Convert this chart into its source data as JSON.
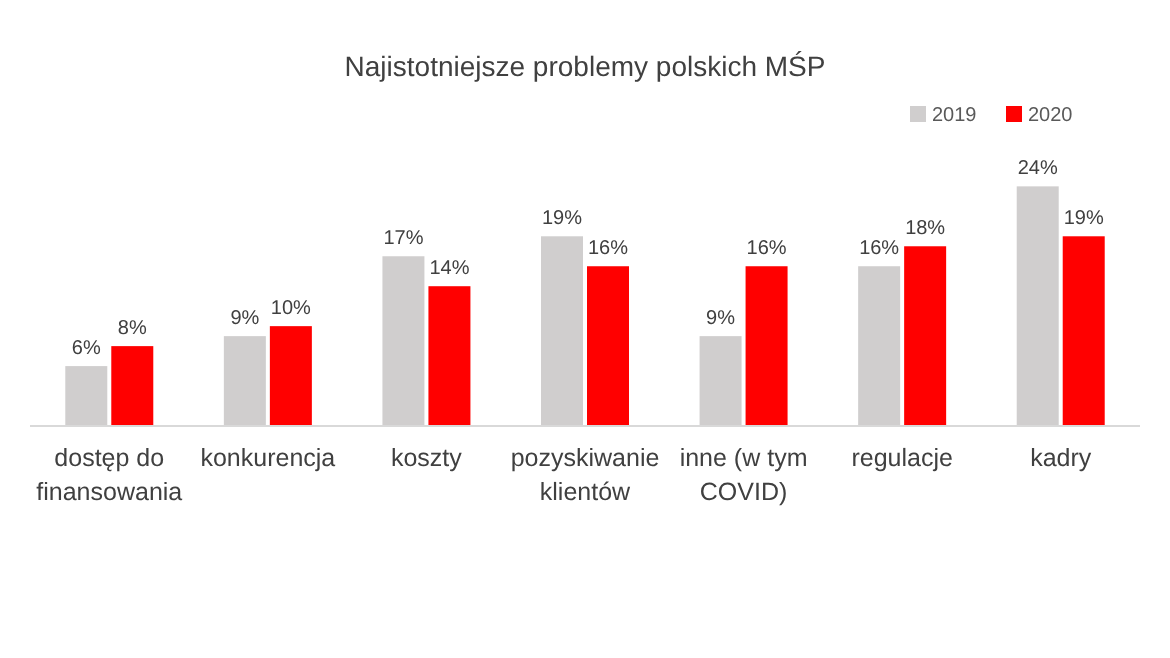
{
  "chart_data": {
    "type": "bar",
    "title": "Najistotniejsze problemy polskich MŚP",
    "categories": [
      "dostęp do finansowania",
      "konkurencja",
      "koszty",
      "pozyskiwanie klientów",
      "inne (w tym COVID)",
      "regulacje",
      "kadry"
    ],
    "series": [
      {
        "name": "2019",
        "color": "#d0cece",
        "values": [
          6,
          9,
          17,
          19,
          9,
          16,
          24
        ],
        "value_labels": [
          "6%",
          "9%",
          "17%",
          "19%",
          "9%",
          "16%",
          "24%"
        ]
      },
      {
        "name": "2020",
        "color": "#ff0000",
        "values": [
          8,
          10,
          14,
          16,
          16,
          18,
          19
        ],
        "value_labels": [
          "8%",
          "10%",
          "14%",
          "16%",
          "16%",
          "18%",
          "19%"
        ]
      }
    ],
    "legend": "top right"
  }
}
